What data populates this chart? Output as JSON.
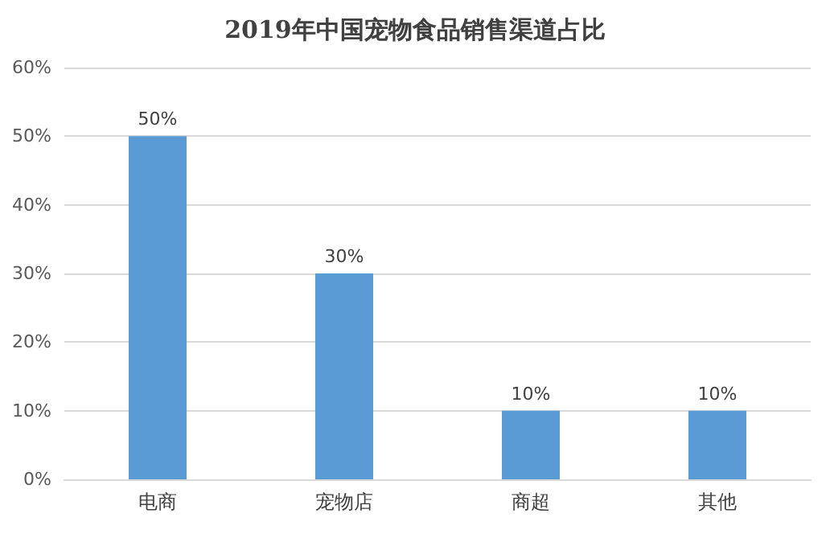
{
  "chart_data": {
    "type": "bar",
    "title": "2019年中国宠物食品销售渠道占比",
    "categories": [
      "电商",
      "宠物店",
      "商超",
      "其他"
    ],
    "values": [
      50,
      30,
      10,
      10
    ],
    "value_labels": [
      "50%",
      "30%",
      "10%",
      "10%"
    ],
    "color": "#5b9bd5",
    "ylim": [
      0,
      60
    ],
    "yticks": [
      {
        "value": 0,
        "label": "0%"
      },
      {
        "value": 10,
        "label": "10%"
      },
      {
        "value": 20,
        "label": "20%"
      },
      {
        "value": 30,
        "label": "30%"
      },
      {
        "value": 40,
        "label": "40%"
      },
      {
        "value": 50,
        "label": "50%"
      },
      {
        "value": 60,
        "label": "60%"
      }
    ],
    "grid": "y"
  }
}
